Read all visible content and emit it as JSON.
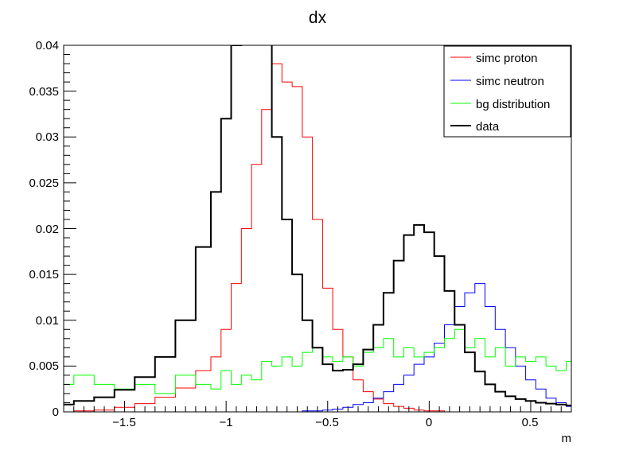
{
  "chart_data": {
    "type": "line",
    "title": "dx",
    "xlabel": "m",
    "ylabel": "",
    "xlim": [
      -1.8,
      0.7
    ],
    "ylim": [
      0,
      0.04
    ],
    "grid": false,
    "legend_position": "top-right",
    "x_ticks": [
      "−1.5",
      "−1",
      "−0.5",
      "0",
      "0.5"
    ],
    "y_ticks": [
      "0",
      "0.005",
      "0.01",
      "0.015",
      "0.02",
      "0.025",
      "0.03",
      "0.035",
      "0.04"
    ],
    "x": [
      -1.8,
      -1.7,
      -1.6,
      -1.5,
      -1.4,
      -1.3,
      -1.2,
      -1.1,
      -1.05,
      -1.0,
      -0.95,
      -0.9,
      -0.85,
      -0.8,
      -0.75,
      -0.7,
      -0.65,
      -0.6,
      -0.55,
      -0.5,
      -0.45,
      -0.4,
      -0.35,
      -0.3,
      -0.25,
      -0.2,
      -0.15,
      -0.1,
      -0.05,
      0.0,
      0.05,
      0.1,
      0.15,
      0.2,
      0.25,
      0.3,
      0.35,
      0.4,
      0.45,
      0.5,
      0.55,
      0.6,
      0.65,
      0.7
    ],
    "series": [
      {
        "name": "simc proton",
        "color": "#ff0000",
        "values": [
          0.0,
          0.0001,
          0.0002,
          0.0005,
          0.0009,
          0.0016,
          0.0026,
          0.0045,
          0.006,
          0.009,
          0.014,
          0.02,
          0.027,
          0.033,
          0.038,
          0.036,
          0.0355,
          0.03,
          0.021,
          0.0135,
          0.009,
          0.006,
          0.0035,
          0.0022,
          0.0014,
          0.0009,
          0.0006,
          0.0004,
          0.0002,
          0.0001,
          0.0001,
          0.0,
          0.0,
          0.0,
          0.0,
          0.0,
          0.0,
          0.0,
          0.0,
          0.0,
          0.0,
          0.0,
          0.0,
          0.0
        ]
      },
      {
        "name": "simc neutron",
        "color": "#0000ff",
        "values": [
          0.0,
          0.0,
          0.0,
          0.0,
          0.0,
          0.0,
          0.0,
          0.0,
          0.0,
          0.0,
          0.0,
          0.0,
          0.0,
          0.0,
          0.0,
          0.0,
          0.0,
          0.0001,
          0.0001,
          0.0002,
          0.0003,
          0.0005,
          0.0008,
          0.001,
          0.0015,
          0.0022,
          0.003,
          0.004,
          0.0052,
          0.006,
          0.0075,
          0.0095,
          0.0115,
          0.013,
          0.014,
          0.0115,
          0.009,
          0.007,
          0.005,
          0.0035,
          0.0025,
          0.0015,
          0.001,
          0.0006
        ]
      },
      {
        "name": "bg distribution",
        "color": "#00ff00",
        "values": [
          0.003,
          0.004,
          0.003,
          0.0025,
          0.003,
          0.002,
          0.004,
          0.003,
          0.0025,
          0.0045,
          0.003,
          0.004,
          0.0035,
          0.0055,
          0.005,
          0.006,
          0.005,
          0.0065,
          0.007,
          0.006,
          0.0055,
          0.006,
          0.005,
          0.0065,
          0.007,
          0.008,
          0.006,
          0.007,
          0.006,
          0.0065,
          0.007,
          0.008,
          0.009,
          0.007,
          0.008,
          0.006,
          0.007,
          0.005,
          0.006,
          0.0055,
          0.006,
          0.005,
          0.0045,
          0.0055
        ]
      },
      {
        "name": "data",
        "color": "#000000",
        "values": [
          0.0008,
          0.0012,
          0.0016,
          0.0024,
          0.0038,
          0.006,
          0.01,
          0.018,
          0.024,
          0.032,
          0.04,
          0.045,
          0.046,
          0.041,
          0.03,
          0.021,
          0.015,
          0.01,
          0.007,
          0.0052,
          0.0045,
          0.0046,
          0.0052,
          0.0068,
          0.0095,
          0.013,
          0.0165,
          0.0193,
          0.0204,
          0.0196,
          0.017,
          0.0132,
          0.0095,
          0.0065,
          0.0044,
          0.003,
          0.0022,
          0.0017,
          0.0014,
          0.0012,
          0.001,
          0.0009,
          0.0008,
          0.0007
        ]
      }
    ]
  }
}
